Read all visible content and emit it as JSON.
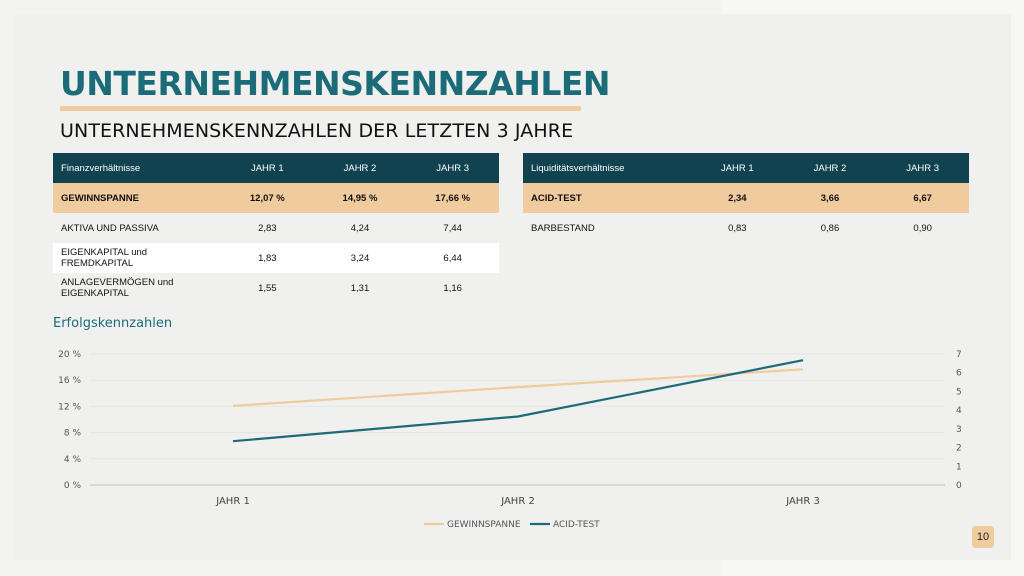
{
  "slide": {
    "title": "UNTERNEHMENSKENNZAHLEN",
    "subtitle": "UNTERNEHMENSKENNZAHLEN DER LETZTEN 3 JAHRE",
    "page_number": "10"
  },
  "financial_table": {
    "headers": [
      "Finanzverhältnisse",
      "JAHR 1",
      "JAHR 2",
      "JAHR 3"
    ],
    "rows": [
      [
        "GEWINNSPANNE",
        "12,07 %",
        "14,95 %",
        "17,66 %"
      ],
      [
        "AKTIVA UND PASSIVA",
        "2,83",
        "4,24",
        "7,44"
      ],
      [
        "EIGENKAPITAL und FREMDKAPITAL",
        "1,83",
        "3,24",
        "6,44"
      ],
      [
        "ANLAGEVERMÖGEN und EIGENKAPITAL",
        "1,55",
        "1,31",
        "1,16"
      ]
    ]
  },
  "liquidity_table": {
    "headers": [
      "Liquiditätsverhältnisse",
      "JAHR 1",
      "JAHR 2",
      "JAHR 3"
    ],
    "rows": [
      [
        "ACID-TEST",
        "2,34",
        "3,66",
        "6,67"
      ],
      [
        "BARBESTAND",
        "0,83",
        "0,86",
        "0,90"
      ]
    ]
  },
  "chart_data": {
    "type": "line",
    "title": "Erfolgskennzahlen",
    "categories": [
      "JAHR 1",
      "JAHR 2",
      "JAHR 3"
    ],
    "series": [
      {
        "name": "GEWINNSPANNE",
        "values": [
          12.07,
          14.95,
          17.66
        ],
        "axis": "left",
        "color": "#efcb9e"
      },
      {
        "name": "ACID-TEST",
        "values": [
          2.34,
          3.66,
          6.67
        ],
        "axis": "right",
        "color": "#1c6b79"
      }
    ],
    "y_left": {
      "min": 0,
      "max": 20,
      "ticks": [
        "0 %",
        "4 %",
        "8 %",
        "12 %",
        "16 %",
        "20 %"
      ]
    },
    "y_right": {
      "min": 0,
      "max": 7,
      "ticks": [
        "0",
        "1",
        "2",
        "3",
        "4",
        "5",
        "6",
        "7"
      ]
    },
    "grid": true,
    "legend": "bottom"
  }
}
